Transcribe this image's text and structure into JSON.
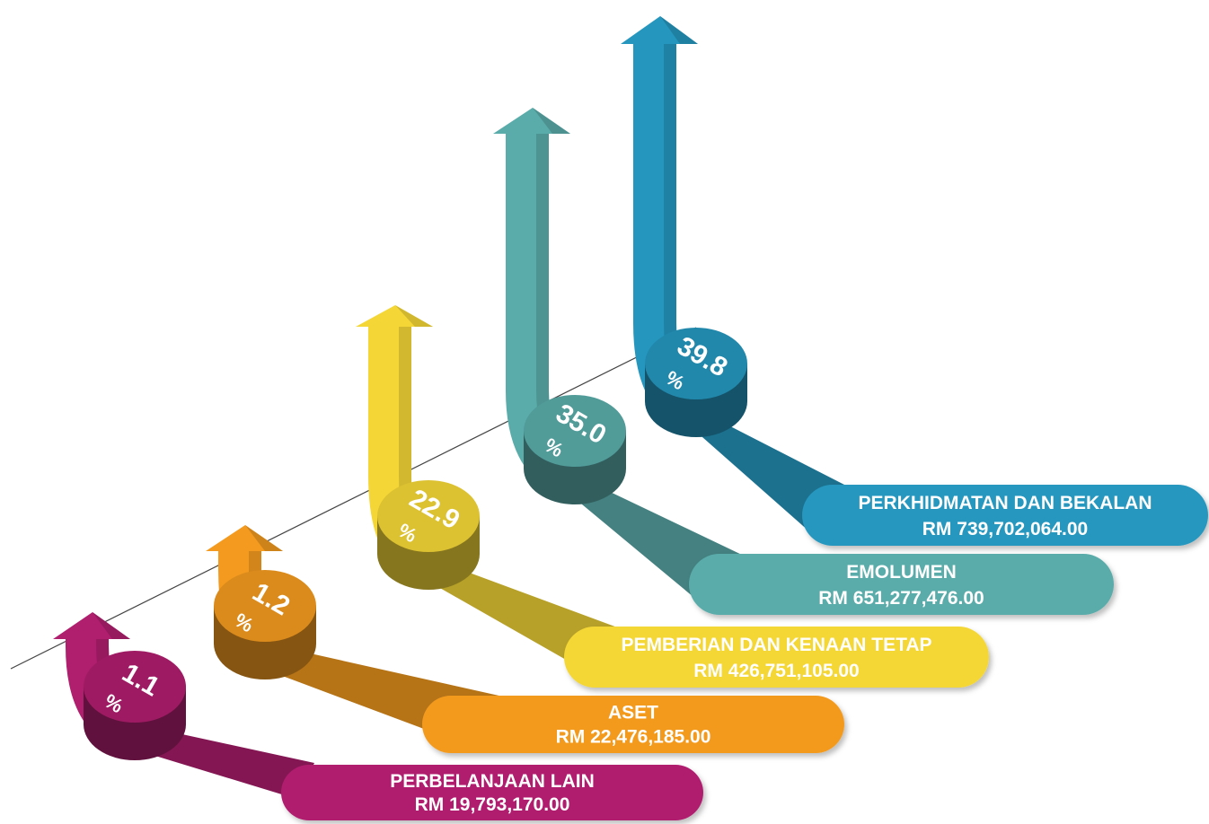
{
  "chart_data": {
    "type": "bar",
    "title": "",
    "xlabel": "",
    "ylabel": "",
    "categories": [
      "PERBELANJAAN LAIN",
      "ASET",
      "PEMBERIAN DAN KENAAN TETAP",
      "EMOLUMEN",
      "PERKHIDMATAN DAN BEKALAN"
    ],
    "series": [
      {
        "values": [
          1.1,
          1.2,
          22.9,
          35.0,
          39.8
        ],
        "display": [
          "1.1",
          "1.2",
          "22.9",
          "35.0",
          "39.8"
        ],
        "unit": "%"
      }
    ],
    "amounts": [
      "RM 19,793,170.00",
      "RM 22,476,185.00",
      "RM 426,751,105.00",
      "RM 651,277,476.00",
      "RM 739,702,064.00"
    ],
    "colors": [
      "#b01e6e",
      "#f39a1f",
      "#f4d636",
      "#5aacaa",
      "#2597bf"
    ],
    "grid": false,
    "legend": "none"
  }
}
